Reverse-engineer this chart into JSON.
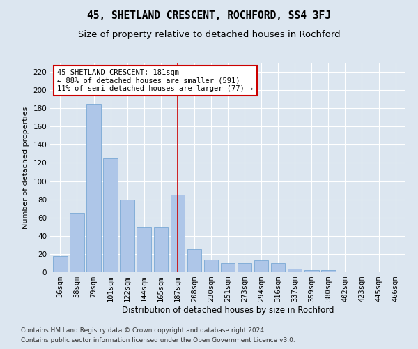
{
  "title": "45, SHETLAND CRESCENT, ROCHFORD, SS4 3FJ",
  "subtitle": "Size of property relative to detached houses in Rochford",
  "xlabel": "Distribution of detached houses by size in Rochford",
  "ylabel": "Number of detached properties",
  "categories": [
    "36sqm",
    "58sqm",
    "79sqm",
    "101sqm",
    "122sqm",
    "144sqm",
    "165sqm",
    "187sqm",
    "208sqm",
    "230sqm",
    "251sqm",
    "273sqm",
    "294sqm",
    "316sqm",
    "337sqm",
    "359sqm",
    "380sqm",
    "402sqm",
    "423sqm",
    "445sqm",
    "466sqm"
  ],
  "values": [
    18,
    65,
    185,
    125,
    80,
    50,
    50,
    85,
    25,
    14,
    10,
    10,
    13,
    10,
    4,
    2,
    2,
    1,
    0,
    0,
    1
  ],
  "bar_color": "#aec6e8",
  "bar_edge_color": "#6a9fd0",
  "vline_x_index": 7,
  "vline_color": "#cc0000",
  "annotation_text": "45 SHETLAND CRESCENT: 181sqm\n← 88% of detached houses are smaller (591)\n11% of semi-detached houses are larger (77) →",
  "annotation_box_facecolor": "#ffffff",
  "annotation_box_edgecolor": "#cc0000",
  "ylim": [
    0,
    230
  ],
  "yticks": [
    0,
    20,
    40,
    60,
    80,
    100,
    120,
    140,
    160,
    180,
    200,
    220
  ],
  "figure_bg_color": "#dce6f0",
  "plot_bg_color": "#dce6f0",
  "grid_color": "#ffffff",
  "footer_line1": "Contains HM Land Registry data © Crown copyright and database right 2024.",
  "footer_line2": "Contains public sector information licensed under the Open Government Licence v3.0.",
  "title_fontsize": 10.5,
  "subtitle_fontsize": 9.5,
  "xlabel_fontsize": 8.5,
  "ylabel_fontsize": 8,
  "tick_fontsize": 7.5,
  "annotation_fontsize": 7.5,
  "footer_fontsize": 6.5
}
